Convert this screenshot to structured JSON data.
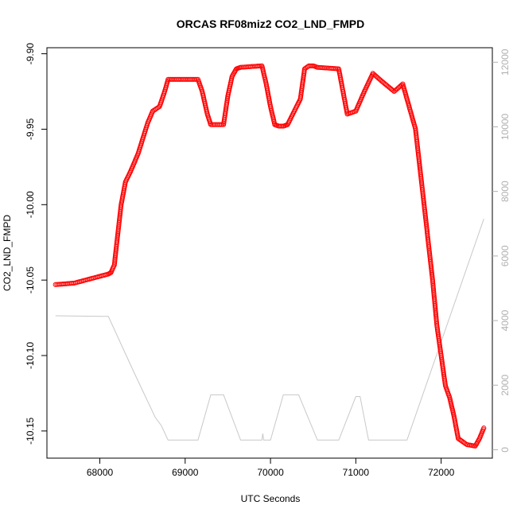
{
  "chart_data": {
    "type": "scatter",
    "title": "ORCAS RF08miz2 CO2_LND_FMPD",
    "xlabel": "UTC Seconds",
    "ylabel": "CO2_LND_FMPD",
    "xlim": [
      67380,
      72600
    ],
    "ylim": [
      -10.168,
      -9.896
    ],
    "y2lim": [
      -260,
      12450
    ],
    "x_ticks": [
      68000,
      69000,
      70000,
      71000,
      72000
    ],
    "x_tick_labels": [
      "68000",
      "69000",
      "70000",
      "71000",
      "72000"
    ],
    "y_ticks": [
      -9.9,
      -9.95,
      -10.0,
      -10.05,
      -10.1,
      -10.15
    ],
    "y_tick_labels": [
      "-9.90",
      "-9.95",
      "-10.00",
      "-10.05",
      "-10.10",
      "-10.15"
    ],
    "y2_ticks": [
      0,
      2000,
      4000,
      6000,
      8000,
      10000,
      12000
    ],
    "y2_tick_labels": [
      "0",
      "2000",
      "4000",
      "6000",
      "8000",
      "10000",
      "12000"
    ],
    "grid": false,
    "colors": {
      "points": "#ff0000",
      "altitude": "#c8c8c8",
      "right_axis": "#b0b0b0",
      "axis": "#000000"
    },
    "series": [
      {
        "axis": "left",
        "style": "open-circle",
        "x": [
          67480,
          67700,
          67900,
          68100,
          68130,
          68170,
          68250,
          68300,
          68360,
          68450,
          68560,
          68620,
          68700,
          68760,
          68800,
          68850,
          69000,
          69150,
          69200,
          69260,
          69300,
          69330,
          69450,
          69500,
          69550,
          69600,
          69650,
          69900,
          69950,
          70000,
          70050,
          70100,
          70150,
          70200,
          70350,
          70400,
          70450,
          70500,
          70550,
          70800,
          70850,
          70900,
          71000,
          71100,
          71200,
          71300,
          71450,
          71550,
          71600,
          71700,
          71750,
          71800,
          71900,
          71950,
          72000,
          72050,
          72100,
          72150,
          72200,
          72300,
          72400,
          72450,
          72500
        ],
        "y": [
          -10.053,
          -10.052,
          -10.049,
          -10.046,
          -10.045,
          -10.04,
          -10.0,
          -9.985,
          -9.978,
          -9.966,
          -9.946,
          -9.938,
          -9.935,
          -9.925,
          -9.917,
          -9.917,
          -9.917,
          -9.917,
          -9.925,
          -9.94,
          -9.947,
          -9.947,
          -9.947,
          -9.928,
          -9.915,
          -9.91,
          -9.909,
          -9.908,
          -9.92,
          -9.935,
          -9.947,
          -9.948,
          -9.948,
          -9.947,
          -9.93,
          -9.91,
          -9.908,
          -9.908,
          -9.909,
          -9.91,
          -9.925,
          -9.94,
          -9.938,
          -9.925,
          -9.913,
          -9.918,
          -9.925,
          -9.92,
          -9.93,
          -9.95,
          -9.975,
          -10.0,
          -10.05,
          -10.08,
          -10.1,
          -10.12,
          -10.128,
          -10.14,
          -10.155,
          -10.159,
          -10.16,
          -10.155,
          -10.148
        ]
      },
      {
        "axis": "right",
        "style": "line",
        "x": [
          67480,
          68100,
          68400,
          68650,
          68720,
          68800,
          69150,
          69300,
          69450,
          69650,
          69900,
          69910,
          69920,
          70000,
          70150,
          70330,
          70550,
          70800,
          71000,
          71050,
          71150,
          71300,
          71600,
          72500
        ],
        "y": [
          4150,
          4130,
          2400,
          1000,
          750,
          300,
          300,
          1700,
          1700,
          300,
          300,
          500,
          300,
          300,
          1700,
          1700,
          300,
          300,
          1650,
          1650,
          300,
          300,
          300,
          7150
        ]
      }
    ]
  }
}
